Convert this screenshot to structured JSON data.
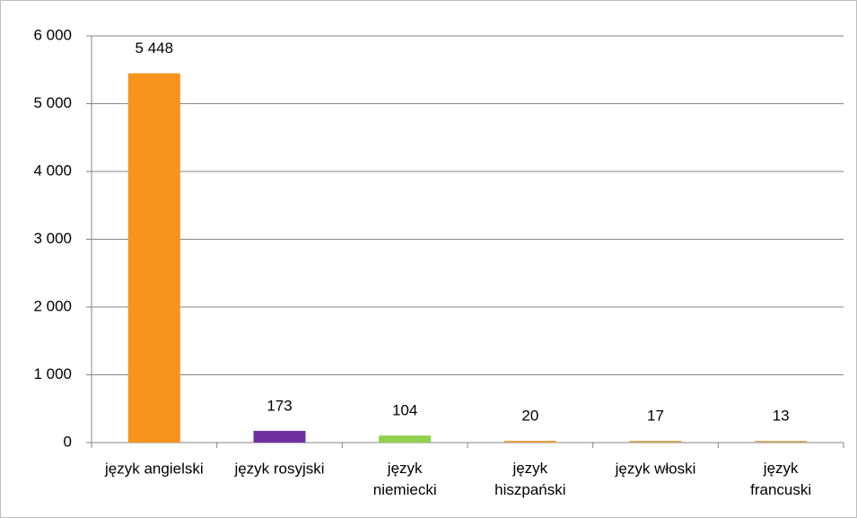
{
  "chart_data": {
    "type": "bar",
    "categories": [
      "język angielski",
      "język rosyjski",
      "język\nniemiecki",
      "język\nhiszpański",
      "język włoski",
      "język\nfrancuski"
    ],
    "values": [
      5448,
      173,
      104,
      20,
      17,
      13
    ],
    "value_labels": [
      "5 448",
      "173",
      "104",
      "20",
      "17",
      "13"
    ],
    "colors": [
      "#f7941d",
      "#7030a0",
      "#92d050",
      "#e8a040",
      "#d4a85a",
      "#c8b06b"
    ],
    "ylim": [
      0,
      6000
    ],
    "yticks": [
      0,
      {
        "value": 1000,
        "label": "1 000"
      },
      {
        "value": 2000,
        "label": "2 000"
      },
      {
        "value": 3000,
        "label": "3 000"
      },
      {
        "value": 4000,
        "label": "4 000"
      },
      {
        "value": 5000,
        "label": "5 000"
      },
      {
        "value": 6000,
        "label": "6 000"
      }
    ],
    "grid": true
  }
}
